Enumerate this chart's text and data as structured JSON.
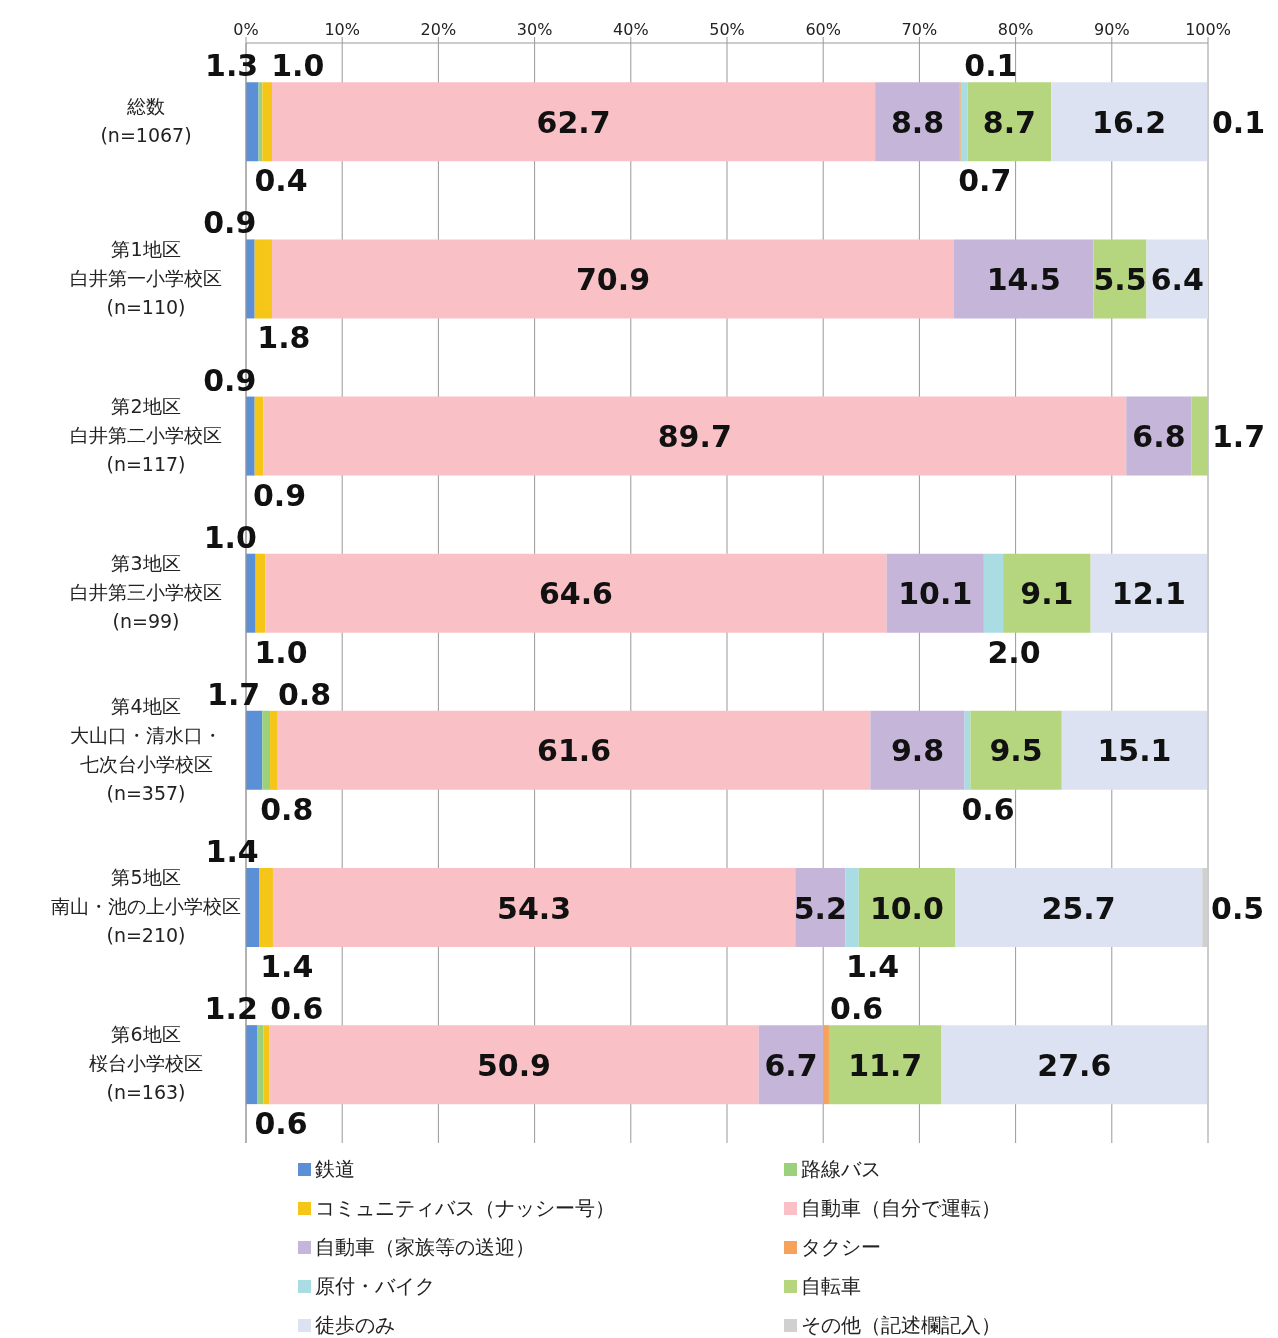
{
  "chart_data": {
    "type": "bar",
    "orientation": "horizontal",
    "stacked": true,
    "categories": [
      "総数\n(n=1067)",
      "第1地区白井第一小学校区\n(n=110)",
      "第2地区白井第二小学校区\n(n=117)",
      "第3地区白井第三小学校区\n(n=99)",
      "第4地区大山口・清水口・七次台小学校区\n(n=357)",
      "第5地区南山・池の上小学校区\n(n=210)",
      "第6地区桜台小学校区\n(n=163)"
    ],
    "series": [
      {
        "name": "鉄道",
        "color": "#5b8fd6",
        "values": [
          1.3,
          0.9,
          0.9,
          1.0,
          1.7,
          1.4,
          1.2
        ],
        "value_labels": [
          "1.3",
          "0.9",
          "0.9",
          "1.0",
          "1.7",
          "1.4",
          "1.2"
        ]
      },
      {
        "name": "路線バス",
        "color": "#9bd17a",
        "values": [
          0.4,
          null,
          null,
          null,
          0.8,
          null,
          0.6
        ],
        "value_labels": [
          "0.4",
          null,
          null,
          null,
          "0.8",
          null,
          "0.6"
        ]
      },
      {
        "name": "コミュニティバス（ナッシー号）",
        "color": "#f5c518",
        "values": [
          1.0,
          1.8,
          0.9,
          1.0,
          0.8,
          1.4,
          0.6
        ],
        "value_labels": [
          "1.0",
          "1.8",
          "0.9",
          "1.0",
          "0.8",
          "1.4",
          "0.6"
        ]
      },
      {
        "name": "自動車（自分で運転）",
        "color": "#f9c0c6",
        "values": [
          62.7,
          70.9,
          89.7,
          64.6,
          61.6,
          54.3,
          50.9
        ],
        "value_labels": [
          "62.7",
          "70.9",
          "89.7",
          "64.6",
          "61.6",
          "54.3",
          "50.9"
        ]
      },
      {
        "name": "自動車（家族等の送迎）",
        "color": "#c4b5d9",
        "values": [
          8.8,
          14.5,
          6.8,
          10.1,
          9.8,
          5.2,
          6.7
        ],
        "value_labels": [
          "8.8",
          "14.5",
          "6.8",
          "10.1",
          "9.8",
          "5.2",
          "6.7"
        ]
      },
      {
        "name": "タクシー",
        "color": "#f5a35c",
        "values": [
          0.1,
          null,
          null,
          null,
          null,
          null,
          0.6
        ],
        "value_labels": [
          "0.1",
          null,
          null,
          null,
          null,
          null,
          "0.6"
        ]
      },
      {
        "name": "原付・バイク",
        "color": "#a9dce3",
        "values": [
          0.7,
          null,
          null,
          2.0,
          0.6,
          1.4,
          null
        ],
        "value_labels": [
          "0.7",
          null,
          null,
          "2.0",
          "0.6",
          "1.4",
          null
        ]
      },
      {
        "name": "自転車",
        "color": "#b5d67f",
        "values": [
          8.7,
          5.5,
          1.7,
          9.1,
          9.5,
          10.0,
          11.7
        ],
        "value_labels": [
          "8.7",
          "5.5",
          "1.7",
          "9.1",
          "9.5",
          "10.0",
          "11.7"
        ]
      },
      {
        "name": "徒歩のみ",
        "color": "#dde2f2",
        "values": [
          16.2,
          6.4,
          null,
          12.1,
          15.1,
          25.7,
          27.6
        ],
        "value_labels": [
          "16.2",
          "6.4",
          null,
          "12.1",
          "15.1",
          "25.7",
          "27.6"
        ]
      },
      {
        "name": "その他（記述欄記入）",
        "color": "#d0d0d0",
        "values": [
          0.1,
          null,
          null,
          null,
          null,
          0.5,
          null
        ],
        "value_labels": [
          "0.1",
          null,
          null,
          null,
          null,
          "0.5",
          null
        ]
      }
    ],
    "xlim": [
      0,
      100
    ],
    "xticks": [
      {
        "value": 0,
        "label": "0%"
      },
      {
        "value": 10,
        "label": "10%"
      },
      {
        "value": 20,
        "label": "20%"
      },
      {
        "value": 30,
        "label": "30%"
      },
      {
        "value": 40,
        "label": "40%"
      },
      {
        "value": 50,
        "label": "50%"
      },
      {
        "value": 60,
        "label": "60%"
      },
      {
        "value": 70,
        "label": "70%"
      },
      {
        "value": 80,
        "label": "80%"
      },
      {
        "value": 90,
        "label": "90%"
      },
      {
        "value": 100,
        "label": "100%"
      }
    ],
    "grid": "x",
    "legend": "bottom"
  }
}
